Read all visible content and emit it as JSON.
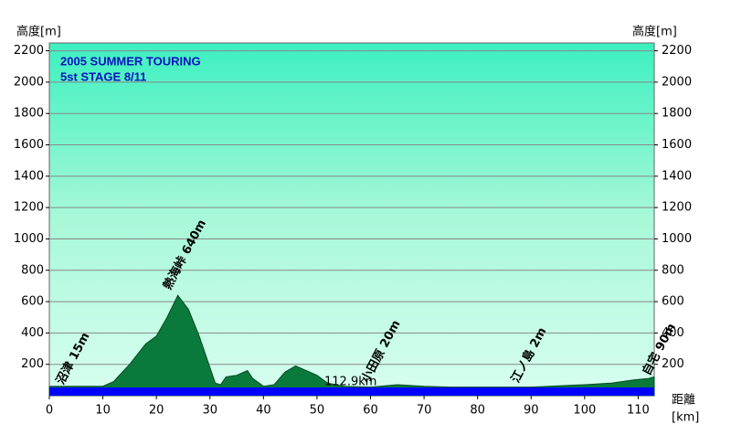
{
  "chart_data": {
    "type": "area",
    "title": "2005 SUMMER TOURING",
    "subtitle": "5st STAGE  8/11",
    "y_label": "高度[m]",
    "y2_label": "高度[m]",
    "x_label_top": "距離",
    "x_label_bottom": "[km]",
    "distance_note": "112.9km",
    "annotations": [
      "沼津 15m",
      "熱海峠 640m",
      "小田原 20m",
      "江ノ島 2m",
      "自宅 90m"
    ],
    "x": [
      0,
      10,
      12,
      15,
      18,
      20,
      22,
      24,
      26,
      28,
      30,
      31,
      32,
      33,
      35,
      37,
      38,
      40,
      42,
      44,
      46,
      48,
      50,
      52,
      55,
      60,
      65,
      70,
      75,
      80,
      90,
      100,
      105,
      109,
      112,
      113
    ],
    "values": [
      60,
      60,
      90,
      200,
      330,
      380,
      500,
      640,
      550,
      380,
      180,
      80,
      70,
      120,
      130,
      160,
      110,
      60,
      70,
      150,
      190,
      160,
      130,
      80,
      60,
      55,
      70,
      60,
      55,
      55,
      55,
      70,
      80,
      100,
      110,
      120
    ],
    "color": "#0a7a3c",
    "xlim": [
      0,
      113
    ],
    "ylim": [
      0,
      2250
    ],
    "xticks": [
      0,
      10,
      20,
      30,
      40,
      50,
      60,
      70,
      80,
      90,
      100,
      110
    ],
    "yticks": [
      200,
      400,
      600,
      800,
      1000,
      1200,
      1400,
      1600,
      1800,
      2000,
      2200
    ],
    "grid": true
  }
}
